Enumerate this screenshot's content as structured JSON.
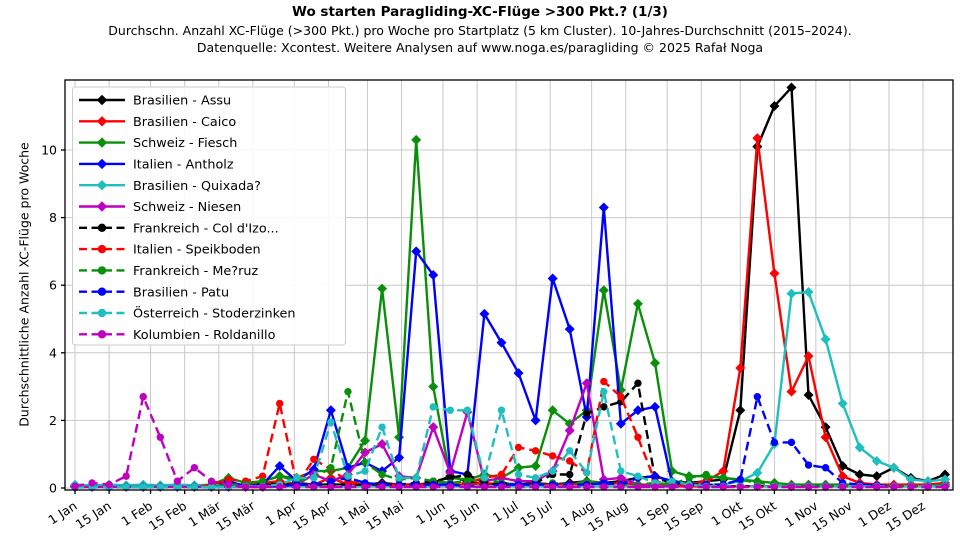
{
  "chart_data": {
    "type": "line",
    "title": "Wo starten Paragliding-XC-Flüge >300 Pkt.? (1/3)",
    "subtitle1": "Durchschn. Anzahl XC-Flüge (>300 Pkt.) pro Woche pro Startplatz (5 km Cluster). 10-Jahres-Durchschnitt (2015–2024).",
    "subtitle2": "Datenquelle: Xcontest. Weitere Analysen auf www.noga.es/paragliding © 2025 Rafał Noga",
    "ylabel": "Durchschnittliche Anzahl XC-Flüge pro Woche",
    "xlabel": "",
    "ylim": [
      0,
      12.07
    ],
    "yticks": [
      0,
      2,
      4,
      6,
      8,
      10
    ],
    "grid": true,
    "legend_position": "upper-left",
    "x_unit": "weeks (52 points, 7-day step starting 1 Jan)",
    "xticks": [
      {
        "label": "1 Jan",
        "day": 0
      },
      {
        "label": "15 Jan",
        "day": 14
      },
      {
        "label": "1 Feb",
        "day": 31
      },
      {
        "label": "15 Feb",
        "day": 45
      },
      {
        "label": "1 Mär",
        "day": 59
      },
      {
        "label": "15 Mär",
        "day": 73
      },
      {
        "label": "1 Apr",
        "day": 90
      },
      {
        "label": "15 Apr",
        "day": 104
      },
      {
        "label": "1 Mai",
        "day": 120
      },
      {
        "label": "15 Mai",
        "day": 134
      },
      {
        "label": "1 Jun",
        "day": 151
      },
      {
        "label": "15 Jun",
        "day": 165
      },
      {
        "label": "1 Jul",
        "day": 181
      },
      {
        "label": "15 Jul",
        "day": 195
      },
      {
        "label": "1 Aug",
        "day": 212
      },
      {
        "label": "15 Aug",
        "day": 226
      },
      {
        "label": "1 Sep",
        "day": 243
      },
      {
        "label": "15 Sep",
        "day": 257
      },
      {
        "label": "1 Okt",
        "day": 273
      },
      {
        "label": "15 Okt",
        "day": 287
      },
      {
        "label": "1 Nov",
        "day": 304
      },
      {
        "label": "15 Nov",
        "day": 318
      },
      {
        "label": "1 Dez",
        "day": 334
      },
      {
        "label": "15 Dez",
        "day": 348
      }
    ],
    "series": [
      {
        "name": "Brasilien - Assu",
        "color": "#000000",
        "line": "solid",
        "marker": "diamond",
        "values": [
          0.05,
          0.05,
          0.05,
          0.05,
          0.05,
          0.05,
          0.05,
          0.05,
          0.05,
          0.1,
          0.05,
          0.1,
          0.1,
          0.15,
          0.1,
          0.1,
          0.1,
          0.1,
          0.15,
          0.1,
          0.1,
          0.15,
          0.35,
          0.2,
          0.1,
          0.15,
          0.1,
          0.15,
          0.1,
          0.15,
          0.2,
          0.15,
          0.2,
          0.3,
          0.35,
          0.2,
          0.15,
          0.2,
          0.25,
          2.3,
          10.1,
          11.3,
          11.85,
          2.75,
          1.8,
          0.65,
          0.4,
          0.35,
          0.6,
          0.3,
          0.2,
          0.4
        ]
      },
      {
        "name": "Brasilien - Caico",
        "color": "#ff0000",
        "line": "solid",
        "marker": "diamond",
        "values": [
          0.05,
          0.05,
          0.05,
          0.05,
          0.05,
          0.05,
          0.05,
          0.05,
          0.05,
          0.1,
          0.1,
          0.15,
          0.2,
          0.1,
          0.1,
          0.3,
          0.1,
          0.1,
          0.1,
          0.1,
          0.1,
          0.1,
          0.1,
          0.1,
          0.15,
          0.1,
          0.1,
          0.1,
          0.1,
          0.1,
          0.15,
          0.1,
          0.15,
          0.1,
          0.1,
          0.15,
          0.1,
          0.2,
          0.5,
          3.55,
          10.35,
          6.35,
          2.85,
          3.9,
          1.5,
          0.35,
          0.15,
          0.1,
          0.1,
          0.1,
          0.1,
          0.15
        ]
      },
      {
        "name": "Schweiz - Fiesch",
        "color": "#0a8f0a",
        "line": "solid",
        "marker": "diamond",
        "values": [
          0.05,
          0.05,
          0.05,
          0.05,
          0.05,
          0.05,
          0.05,
          0.05,
          0.1,
          0.3,
          0.15,
          0.2,
          0.35,
          0.3,
          0.5,
          0.5,
          0.6,
          1.4,
          5.9,
          1.5,
          10.3,
          3.0,
          0.3,
          0.25,
          0.4,
          0.3,
          0.6,
          0.65,
          2.3,
          1.9,
          2.3,
          5.85,
          2.9,
          5.45,
          3.7,
          0.5,
          0.35,
          0.35,
          0.3,
          0.25,
          0.2,
          0.15,
          0.1,
          0.1,
          0.1,
          0.1,
          0.1,
          0.05,
          0.05,
          0.05,
          0.05,
          0.1
        ]
      },
      {
        "name": "Italien - Antholz",
        "color": "#0000ff",
        "line": "solid",
        "marker": "diamond",
        "values": [
          0.05,
          0.05,
          0.05,
          0.05,
          0.05,
          0.05,
          0.05,
          0.05,
          0.05,
          0.2,
          0.05,
          0.1,
          0.65,
          0.2,
          0.55,
          2.3,
          0.6,
          0.75,
          0.5,
          0.9,
          7.0,
          6.3,
          0.5,
          0.4,
          5.15,
          4.3,
          3.4,
          2.0,
          6.2,
          4.7,
          2.1,
          8.3,
          1.9,
          2.3,
          2.4,
          0.15,
          0.1,
          0.1,
          0.05,
          0.05,
          0.05,
          0.05,
          0.05,
          0.05,
          0.05,
          0.05,
          0.05,
          0.05,
          0.05,
          0.05,
          0.05,
          0.05
        ]
      },
      {
        "name": "Brasilien - Quixada?",
        "color": "#1fbfbf",
        "line": "solid",
        "marker": "diamond",
        "values": [
          0.1,
          0.08,
          0.1,
          0.08,
          0.1,
          0.08,
          0.1,
          0.08,
          0.1,
          0.05,
          0.05,
          0.05,
          0.05,
          0.05,
          0.05,
          0.05,
          0.05,
          0.05,
          0.05,
          0.05,
          0.05,
          0.05,
          0.05,
          0.05,
          0.05,
          0.05,
          0.05,
          0.05,
          0.05,
          0.05,
          0.05,
          0.05,
          0.05,
          0.05,
          0.05,
          0.05,
          0.1,
          0.1,
          0.1,
          0.2,
          0.45,
          1.3,
          5.75,
          5.8,
          4.4,
          2.5,
          1.2,
          0.8,
          0.6,
          0.25,
          0.2,
          0.25
        ]
      },
      {
        "name": "Schweiz - Niesen",
        "color": "#c000c0",
        "line": "solid",
        "marker": "diamond",
        "values": [
          0.03,
          0.03,
          0.03,
          0.03,
          0.03,
          0.03,
          0.03,
          0.03,
          0.03,
          0.03,
          0.03,
          0.03,
          0.05,
          0.1,
          0.4,
          0.2,
          0.4,
          1.05,
          1.3,
          0.35,
          0.3,
          1.8,
          0.45,
          2.25,
          0.2,
          0.3,
          0.2,
          0.2,
          0.5,
          1.7,
          3.1,
          0.25,
          0.3,
          0.1,
          0.05,
          0.05,
          0.05,
          0.05,
          0.05,
          0.05,
          0.05,
          0.05,
          0.05,
          0.05,
          0.05,
          0.05,
          0.05,
          0.05,
          0.05,
          0.05,
          0.05,
          0.05
        ]
      },
      {
        "name": "Frankreich - Col d'Izo...",
        "color": "#000000",
        "line": "dashed",
        "marker": "circle",
        "values": [
          0.03,
          0.03,
          0.03,
          0.03,
          0.03,
          0.03,
          0.03,
          0.03,
          0.03,
          0.05,
          0.1,
          0.15,
          0.1,
          0.1,
          0.1,
          0.1,
          0.1,
          0.1,
          0.1,
          0.1,
          0.15,
          0.2,
          0.3,
          0.4,
          0.15,
          0.1,
          0.1,
          0.15,
          0.4,
          0.4,
          2.2,
          2.4,
          2.55,
          3.1,
          0.3,
          0.15,
          0.1,
          0.1,
          0.05,
          0.05,
          0.05,
          0.05,
          0.05,
          0.05,
          0.05,
          0.05,
          0.05,
          0.05,
          0.05,
          0.05,
          0.05,
          0.05
        ]
      },
      {
        "name": "Italien - Speikboden",
        "color": "#ff0000",
        "line": "dashed",
        "marker": "circle",
        "values": [
          0.03,
          0.03,
          0.03,
          0.03,
          0.03,
          0.03,
          0.03,
          0.03,
          0.1,
          0.25,
          0.2,
          0.35,
          2.5,
          0.1,
          0.85,
          0.55,
          0.2,
          0.1,
          0.1,
          0.1,
          0.1,
          0.1,
          0.1,
          0.15,
          0.3,
          0.4,
          1.2,
          1.1,
          0.95,
          0.8,
          0.45,
          3.15,
          2.7,
          1.5,
          0.2,
          0.1,
          0.05,
          0.05,
          0.05,
          0.05,
          0.05,
          0.05,
          0.05,
          0.05,
          0.05,
          0.05,
          0.05,
          0.05,
          0.05,
          0.05,
          0.05,
          0.05
        ]
      },
      {
        "name": "Frankreich - Me?ruz",
        "color": "#0a8f0a",
        "line": "dashed",
        "marker": "circle",
        "values": [
          0.03,
          0.03,
          0.03,
          0.03,
          0.03,
          0.03,
          0.03,
          0.03,
          0.03,
          0.1,
          0.1,
          0.2,
          0.35,
          0.2,
          0.3,
          0.6,
          2.85,
          0.75,
          0.4,
          0.25,
          0.3,
          0.2,
          0.15,
          0.2,
          0.3,
          0.15,
          0.1,
          0.1,
          0.15,
          0.1,
          0.2,
          0.15,
          0.1,
          0.1,
          0.15,
          0.1,
          0.3,
          0.4,
          0.3,
          0.25,
          0.15,
          0.1,
          0.05,
          0.05,
          0.05,
          0.05,
          0.05,
          0.05,
          0.05,
          0.05,
          0.05,
          0.05
        ]
      },
      {
        "name": "Brasilien - Patu",
        "color": "#0000ff",
        "line": "dashed",
        "marker": "circle",
        "values": [
          0.03,
          0.03,
          0.03,
          0.03,
          0.03,
          0.03,
          0.03,
          0.03,
          0.03,
          0.03,
          0.05,
          0.05,
          0.05,
          0.1,
          0.1,
          0.2,
          0.3,
          0.15,
          0.1,
          0.1,
          0.1,
          0.1,
          0.1,
          0.05,
          0.05,
          0.1,
          0.1,
          0.1,
          0.1,
          0.1,
          0.1,
          0.15,
          0.1,
          0.3,
          0.35,
          0.2,
          0.1,
          0.1,
          0.1,
          0.25,
          2.7,
          1.35,
          1.35,
          0.68,
          0.6,
          0.15,
          0.1,
          0.08,
          0.05,
          0.05,
          0.05,
          0.05
        ]
      },
      {
        "name": "Österreich - Stoderzinken",
        "color": "#1fbfbf",
        "line": "dashed",
        "marker": "circle",
        "values": [
          0.03,
          0.03,
          0.03,
          0.03,
          0.03,
          0.03,
          0.03,
          0.03,
          0.03,
          0.03,
          0.05,
          0.05,
          0.1,
          0.3,
          0.3,
          1.95,
          0.35,
          0.5,
          1.8,
          0.3,
          0.3,
          2.4,
          2.3,
          2.3,
          0.3,
          2.3,
          0.4,
          0.3,
          0.5,
          1.1,
          0.45,
          2.85,
          0.5,
          0.35,
          0.15,
          0.2,
          0.1,
          0.05,
          0.05,
          0.05,
          0.05,
          0.05,
          0.05,
          0.05,
          0.05,
          0.05,
          0.05,
          0.05,
          0.05,
          0.05,
          0.05,
          0.05
        ]
      },
      {
        "name": "Kolumbien - Roldanillo",
        "color": "#c000c0",
        "line": "dashed",
        "marker": "circle",
        "values": [
          0.05,
          0.15,
          0.1,
          0.35,
          2.7,
          1.5,
          0.2,
          0.6,
          0.2,
          0.1,
          0.03,
          0.03,
          0.03,
          0.03,
          0.03,
          0.03,
          0.03,
          0.03,
          0.03,
          0.03,
          0.03,
          0.03,
          0.03,
          0.03,
          0.03,
          0.03,
          0.03,
          0.03,
          0.03,
          0.03,
          0.03,
          0.03,
          0.03,
          0.03,
          0.03,
          0.03,
          0.03,
          0.03,
          0.03,
          0.03,
          0.03,
          0.03,
          0.03,
          0.03,
          0.03,
          0.03,
          0.03,
          0.03,
          0.03,
          0.03,
          0.03,
          0.03
        ]
      }
    ],
    "plot_colors": {
      "grid": "#c8c8c8",
      "spine": "#000000",
      "background": "#ffffff"
    }
  }
}
